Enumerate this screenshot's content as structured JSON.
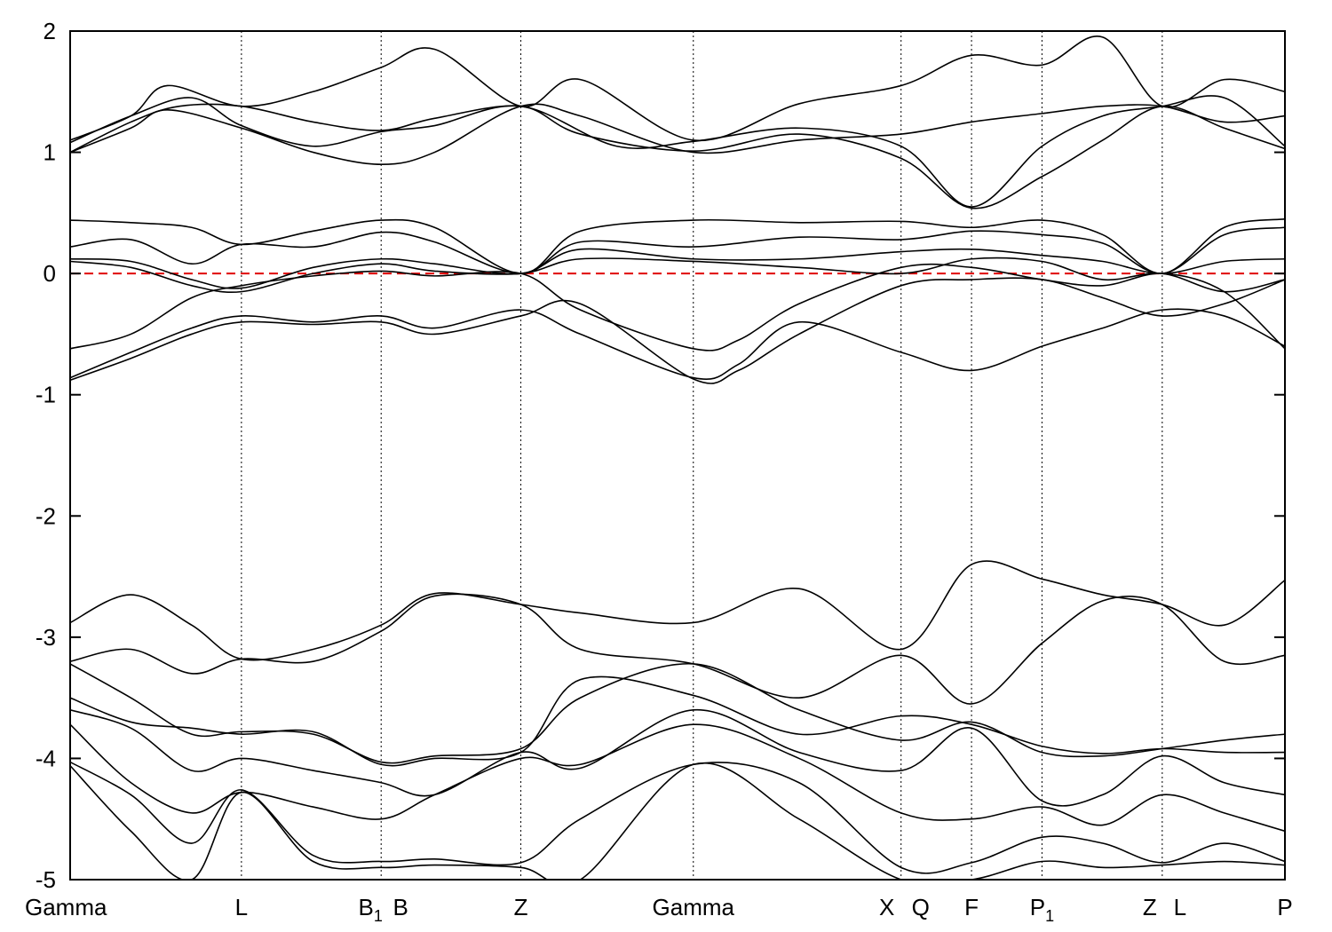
{
  "chart_data": {
    "type": "line",
    "title": "",
    "xlabel": "",
    "ylabel": "",
    "ylim": [
      -5,
      2
    ],
    "yticks": [
      2,
      1,
      0,
      -1,
      -2,
      -3,
      -4,
      -5
    ],
    "ytick_labels": [
      "2",
      "1",
      "0",
      "-1",
      "-2",
      "-3",
      "-4",
      "-5"
    ],
    "xlim": [
      0,
      1
    ],
    "kpoints": [
      {
        "label": "Gamma",
        "sub": "",
        "x": 0.0
      },
      {
        "label": "L",
        "sub": "",
        "x": 0.141
      },
      {
        "label": "B",
        "sub": "1",
        "x": 0.256
      },
      {
        "label": "B",
        "sub": "",
        "x": 0.256
      },
      {
        "label": "Z",
        "sub": "",
        "x": 0.371
      },
      {
        "label": "Gamma",
        "sub": "",
        "x": 0.513
      },
      {
        "label": "X",
        "sub": "",
        "x": 0.684
      },
      {
        "label": "Q",
        "sub": "",
        "x": 0.684
      },
      {
        "label": "F",
        "sub": "",
        "x": 0.742
      },
      {
        "label": "P",
        "sub": "1",
        "x": 0.8
      },
      {
        "label": "Z",
        "sub": "",
        "x": 0.899
      },
      {
        "label": "L",
        "sub": "",
        "x": 0.899
      },
      {
        "label": "P",
        "sub": "",
        "x": 1.0
      }
    ],
    "kpoint_lines": [
      0.141,
      0.256,
      0.371,
      0.513,
      0.684,
      0.742,
      0.8,
      0.899
    ],
    "fermi_level": 0,
    "fermi_color": "#e00000",
    "band_color": "#000000",
    "series": [
      {
        "x": [
          0,
          0.05,
          0.08,
          0.141,
          0.2,
          0.256,
          0.3,
          0.371,
          0.42,
          0.513,
          0.6,
          0.684,
          0.742,
          0.8,
          0.85,
          0.899,
          0.95,
          1.0
        ],
        "values": [
          1.1,
          1.3,
          1.55,
          1.38,
          1.5,
          1.7,
          1.85,
          1.38,
          1.6,
          1.1,
          1.4,
          1.55,
          1.8,
          1.72,
          1.95,
          1.38,
          1.6,
          1.5
        ]
      },
      {
        "x": [
          0,
          0.05,
          0.08,
          0.141,
          0.2,
          0.256,
          0.3,
          0.371,
          0.42,
          0.513,
          0.6,
          0.684,
          0.742,
          0.8,
          0.85,
          0.899,
          0.95,
          1.0
        ],
        "values": [
          1.0,
          1.2,
          1.35,
          1.2,
          1.0,
          0.9,
          1.0,
          1.38,
          1.3,
          1.0,
          1.1,
          1.15,
          1.25,
          1.32,
          1.38,
          1.38,
          1.25,
          1.3
        ]
      },
      {
        "x": [
          0,
          0.05,
          0.09,
          0.141,
          0.2,
          0.256,
          0.3,
          0.371,
          0.42,
          0.513,
          0.6,
          0.684,
          0.742,
          0.8,
          0.85,
          0.899,
          0.95,
          1.0
        ],
        "values": [
          1.0,
          1.25,
          1.38,
          1.38,
          1.25,
          1.18,
          1.28,
          1.38,
          1.15,
          1.01,
          1.15,
          0.95,
          0.54,
          0.8,
          1.1,
          1.38,
          1.2,
          1.03
        ]
      },
      {
        "x": [
          0,
          0.05,
          0.1,
          0.141,
          0.2,
          0.256,
          0.3,
          0.371,
          0.45,
          0.513,
          0.6,
          0.684,
          0.742,
          0.8,
          0.85,
          0.899,
          0.95,
          1.0
        ],
        "values": [
          1.08,
          1.3,
          1.45,
          1.22,
          1.05,
          1.17,
          1.22,
          1.38,
          1.05,
          1.09,
          1.2,
          1.05,
          0.55,
          1.05,
          1.3,
          1.38,
          1.45,
          1.05
        ]
      },
      {
        "x": [
          0,
          0.05,
          0.1,
          0.141,
          0.2,
          0.256,
          0.3,
          0.371,
          0.42,
          0.513,
          0.6,
          0.684,
          0.742,
          0.8,
          0.85,
          0.899,
          0.95,
          1.0
        ],
        "values": [
          0.44,
          0.42,
          0.38,
          0.24,
          0.35,
          0.44,
          0.38,
          0.0,
          0.35,
          0.44,
          0.42,
          0.43,
          0.38,
          0.44,
          0.32,
          0.0,
          0.38,
          0.45
        ]
      },
      {
        "x": [
          0,
          0.05,
          0.1,
          0.141,
          0.2,
          0.256,
          0.3,
          0.371,
          0.42,
          0.513,
          0.6,
          0.684,
          0.742,
          0.8,
          0.85,
          0.899,
          0.95,
          1.0
        ],
        "values": [
          0.22,
          0.28,
          0.08,
          0.24,
          0.22,
          0.34,
          0.26,
          0.0,
          0.26,
          0.22,
          0.3,
          0.28,
          0.35,
          0.32,
          0.25,
          0.0,
          0.32,
          0.38
        ]
      },
      {
        "x": [
          0,
          0.05,
          0.1,
          0.141,
          0.2,
          0.256,
          0.3,
          0.371,
          0.42,
          0.513,
          0.6,
          0.684,
          0.742,
          0.8,
          0.85,
          0.899,
          0.95,
          1.0
        ],
        "values": [
          0.12,
          0.1,
          -0.05,
          -0.12,
          0.05,
          0.12,
          0.08,
          0.0,
          0.2,
          0.12,
          0.12,
          0.18,
          0.2,
          0.15,
          0.1,
          0.0,
          0.1,
          0.12
        ]
      },
      {
        "x": [
          0,
          0.05,
          0.1,
          0.141,
          0.2,
          0.256,
          0.3,
          0.371,
          0.42,
          0.513,
          0.6,
          0.684,
          0.742,
          0.8,
          0.85,
          0.899,
          0.95,
          1.0
        ],
        "values": [
          0.1,
          0.05,
          -0.1,
          -0.15,
          0.0,
          0.08,
          0.02,
          0.0,
          0.12,
          0.1,
          0.05,
          0.0,
          0.12,
          0.1,
          -0.05,
          0.0,
          -0.15,
          -0.05
        ]
      },
      {
        "x": [
          0,
          0.05,
          0.1,
          0.141,
          0.2,
          0.256,
          0.3,
          0.371,
          0.42,
          0.513,
          0.55,
          0.6,
          0.684,
          0.742,
          0.8,
          0.85,
          0.899,
          0.95,
          1.0
        ],
        "values": [
          -0.62,
          -0.5,
          -0.2,
          -0.1,
          -0.02,
          0.02,
          -0.02,
          0.0,
          -0.3,
          -0.62,
          -0.55,
          -0.25,
          0.05,
          0.05,
          -0.05,
          -0.1,
          0.0,
          -0.15,
          -0.62
        ]
      },
      {
        "x": [
          0,
          0.05,
          0.1,
          0.141,
          0.2,
          0.256,
          0.3,
          0.371,
          0.42,
          0.513,
          0.55,
          0.6,
          0.684,
          0.742,
          0.8,
          0.85,
          0.899,
          0.95,
          1.0
        ],
        "values": [
          -0.86,
          -0.65,
          -0.45,
          -0.35,
          -0.4,
          -0.35,
          -0.45,
          -0.3,
          -0.5,
          -0.86,
          -0.75,
          -0.4,
          -0.65,
          -0.8,
          -0.6,
          -0.45,
          -0.3,
          -0.35,
          -0.6
        ]
      },
      {
        "x": [
          0,
          0.05,
          0.1,
          0.141,
          0.2,
          0.256,
          0.3,
          0.371,
          0.42,
          0.513,
          0.55,
          0.6,
          0.684,
          0.742,
          0.8,
          0.85,
          0.899,
          0.95,
          1.0
        ],
        "values": [
          -0.88,
          -0.7,
          -0.5,
          -0.4,
          -0.42,
          -0.4,
          -0.5,
          -0.35,
          -0.25,
          -0.87,
          -0.8,
          -0.5,
          -0.1,
          -0.05,
          -0.05,
          -0.2,
          -0.35,
          -0.25,
          -0.05
        ]
      },
      {
        "x": [
          0,
          0.05,
          0.1,
          0.141,
          0.2,
          0.256,
          0.3,
          0.371,
          0.42,
          0.513,
          0.6,
          0.684,
          0.742,
          0.8,
          0.85,
          0.899,
          0.95,
          1.0
        ],
        "values": [
          -2.88,
          -2.65,
          -2.9,
          -3.18,
          -3.1,
          -2.9,
          -2.64,
          -2.73,
          -2.8,
          -2.88,
          -2.6,
          -3.1,
          -2.4,
          -2.52,
          -2.65,
          -2.73,
          -2.9,
          -2.53
        ]
      },
      {
        "x": [
          0,
          0.05,
          0.1,
          0.141,
          0.2,
          0.256,
          0.3,
          0.371,
          0.42,
          0.513,
          0.6,
          0.684,
          0.742,
          0.8,
          0.85,
          0.899,
          0.95,
          1.0
        ],
        "values": [
          -3.2,
          -3.1,
          -3.3,
          -3.18,
          -3.2,
          -2.95,
          -2.66,
          -2.73,
          -3.1,
          -3.22,
          -3.5,
          -3.15,
          -3.55,
          -3.05,
          -2.7,
          -2.73,
          -3.2,
          -3.15
        ]
      },
      {
        "x": [
          0,
          0.05,
          0.1,
          0.141,
          0.2,
          0.256,
          0.3,
          0.371,
          0.42,
          0.513,
          0.6,
          0.684,
          0.742,
          0.8,
          0.85,
          0.899,
          0.95,
          1.0
        ],
        "values": [
          -3.22,
          -3.5,
          -3.8,
          -3.78,
          -3.8,
          -4.03,
          -3.98,
          -3.92,
          -3.5,
          -3.22,
          -3.6,
          -3.85,
          -3.7,
          -3.95,
          -3.98,
          -3.92,
          -3.85,
          -3.8
        ]
      },
      {
        "x": [
          0,
          0.05,
          0.1,
          0.141,
          0.2,
          0.256,
          0.3,
          0.371,
          0.42,
          0.513,
          0.6,
          0.684,
          0.742,
          0.8,
          0.85,
          0.899,
          0.95,
          1.0
        ],
        "values": [
          -3.5,
          -3.7,
          -3.75,
          -3.8,
          -3.78,
          -4.05,
          -4.0,
          -3.95,
          -3.35,
          -3.48,
          -3.8,
          -3.65,
          -3.72,
          -3.9,
          -3.96,
          -3.92,
          -3.95,
          -3.95
        ]
      },
      {
        "x": [
          0,
          0.05,
          0.1,
          0.141,
          0.2,
          0.256,
          0.3,
          0.371,
          0.42,
          0.513,
          0.6,
          0.684,
          0.742,
          0.8,
          0.85,
          0.899,
          0.95,
          1.0
        ],
        "values": [
          -3.6,
          -3.75,
          -4.1,
          -4.0,
          -4.1,
          -4.2,
          -4.3,
          -3.95,
          -4.08,
          -3.6,
          -3.95,
          -4.1,
          -3.75,
          -4.35,
          -4.3,
          -3.98,
          -4.2,
          -4.3
        ]
      },
      {
        "x": [
          0,
          0.05,
          0.1,
          0.141,
          0.2,
          0.256,
          0.3,
          0.371,
          0.42,
          0.513,
          0.6,
          0.684,
          0.742,
          0.8,
          0.85,
          0.899,
          0.95,
          1.0
        ],
        "values": [
          -3.72,
          -4.2,
          -4.45,
          -4.28,
          -4.4,
          -4.5,
          -4.3,
          -4.0,
          -4.05,
          -3.72,
          -4.0,
          -4.45,
          -4.5,
          -4.4,
          -4.55,
          -4.3,
          -4.45,
          -4.6
        ]
      },
      {
        "x": [
          0,
          0.05,
          0.1,
          0.141,
          0.2,
          0.256,
          0.3,
          0.371,
          0.42,
          0.513,
          0.6,
          0.684,
          0.742,
          0.8,
          0.85,
          0.899,
          0.95,
          1.0
        ],
        "values": [
          -4.03,
          -4.3,
          -4.7,
          -4.26,
          -4.8,
          -4.85,
          -4.83,
          -4.86,
          -4.5,
          -4.05,
          -4.2,
          -4.9,
          -4.86,
          -4.65,
          -4.7,
          -4.86,
          -4.7,
          -4.85
        ]
      },
      {
        "x": [
          0,
          0.05,
          0.1,
          0.141,
          0.2,
          0.256,
          0.3,
          0.371,
          0.42,
          0.513,
          0.6,
          0.684,
          0.742,
          0.8,
          0.85,
          0.899,
          0.95,
          1.0
        ],
        "values": [
          -4.06,
          -4.6,
          -5.0,
          -4.28,
          -4.85,
          -4.9,
          -4.88,
          -4.9,
          -5.0,
          -4.05,
          -4.5,
          -5.0,
          -5.0,
          -4.85,
          -4.9,
          -4.88,
          -4.85,
          -4.88
        ]
      }
    ]
  }
}
